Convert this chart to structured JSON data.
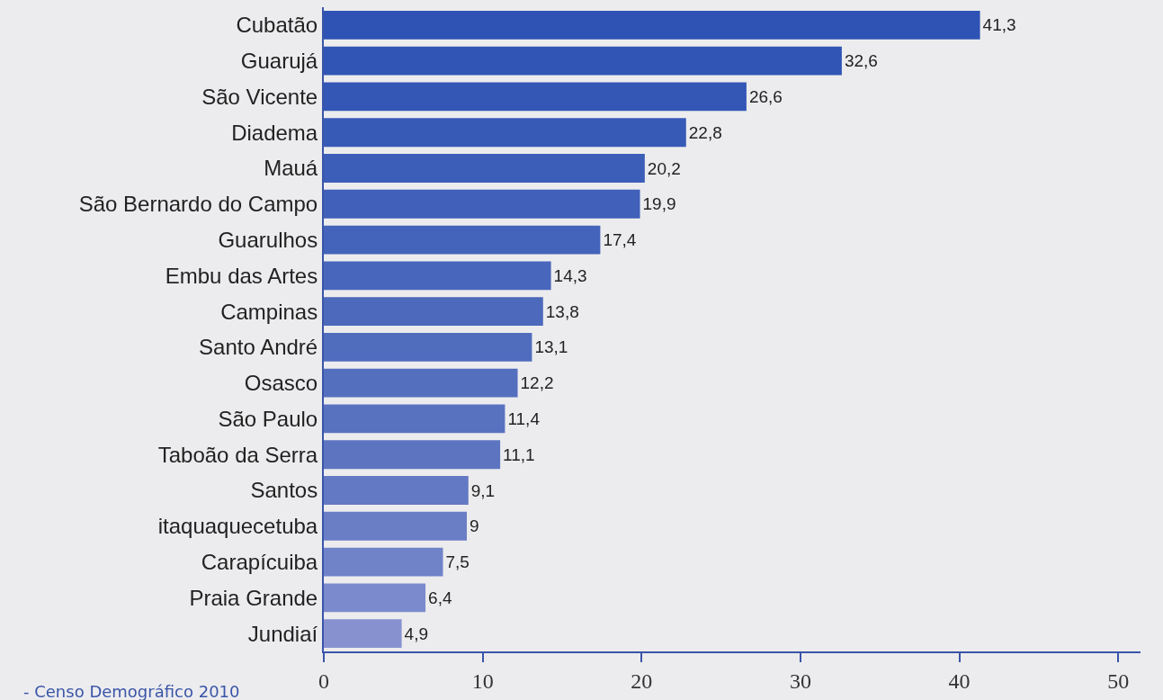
{
  "chart_data": {
    "type": "bar",
    "orientation": "horizontal",
    "categories": [
      "Cubatão",
      "Guarujá",
      "São Vicente",
      "Diadema",
      "Mauá",
      "São Bernardo do Campo",
      "Guarulhos",
      "Embu das Artes",
      "Campinas",
      "Santo André",
      "Osasco",
      "São Paulo",
      "Taboão da Serra",
      "Santos",
      "itaquaquecetuba",
      "Carapícuiba",
      "Praia Grande",
      "Jundiaí"
    ],
    "values": [
      41.3,
      32.6,
      26.6,
      22.8,
      20.2,
      19.9,
      17.4,
      14.3,
      13.8,
      13.1,
      12.2,
      11.4,
      11.1,
      9.1,
      9,
      7.5,
      6.4,
      4.9
    ],
    "colors": [
      "#2f53b4",
      "#3155b5",
      "#3457b6",
      "#385ab7",
      "#3c5db8",
      "#4060b9",
      "#4463ba",
      "#4866bb",
      "#4c69bc",
      "#506cbd",
      "#546fbe",
      "#5972c0",
      "#5d75c1",
      "#6379c3",
      "#697ec5",
      "#7083c8",
      "#7b8acc",
      "#8891d0"
    ],
    "value_labels": [
      "41,3",
      "32,6",
      "26,6",
      "22,8",
      "20,2",
      "19,9",
      "17,4",
      "14,3",
      "13,8",
      "13,1",
      "12,2",
      "11,4",
      "11,1",
      "9,1",
      "9",
      "7,5",
      "6,4",
      "4,9"
    ],
    "xlim": [
      0,
      51.4
    ],
    "xticks": [
      0,
      10,
      20,
      30,
      40,
      50
    ],
    "grid": false,
    "annotations": [
      "- Censo Demográfico 2010"
    ]
  }
}
